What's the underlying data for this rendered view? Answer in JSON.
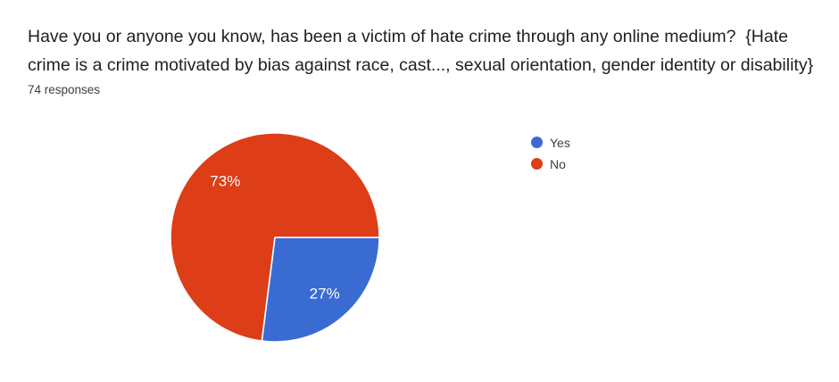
{
  "header": {
    "title": "Have you or anyone you know, has been a victim of hate crime through any online medium?  {Hate crime is a crime motivated by bias against race, cast..., sexual orientation, gender identity or disability}",
    "responses_count": "74 responses"
  },
  "chart_data": {
    "type": "pie",
    "title": "Have you or anyone you know, has been a victim of hate crime through any online medium?  {Hate crime is a crime motivated by bias against race, cast..., sexual orientation, gender identity or disability}",
    "subtitle": "74 responses",
    "total_responses": 74,
    "categories": [
      "Yes",
      "No"
    ],
    "values": [
      27,
      73
    ],
    "unit": "percent",
    "slices": [
      {
        "name": "Yes",
        "value": 27,
        "label": "27%",
        "color": "#3a6bd2"
      },
      {
        "name": "No",
        "value": 73,
        "label": "73%",
        "color": "#dd3d17"
      }
    ],
    "legend_position": "right",
    "label_color": "#ffffff",
    "start_angle_deg": 90,
    "direction": "clockwise"
  }
}
